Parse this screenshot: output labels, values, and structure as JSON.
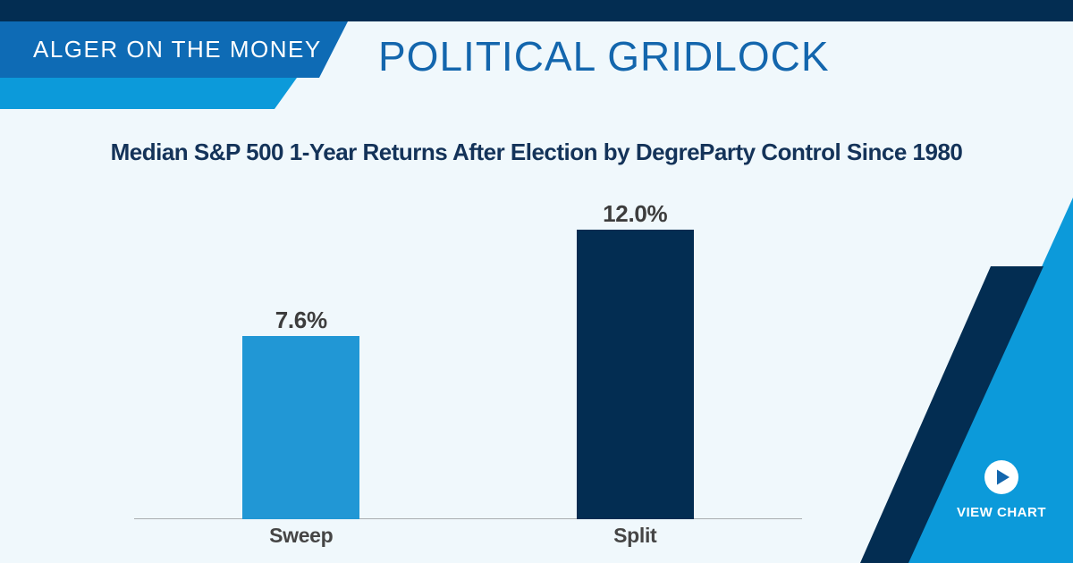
{
  "header": {
    "brand": "ALGER ON THE MONEY",
    "title": "POLITICAL GRIDLOCK"
  },
  "chart_data": {
    "type": "bar",
    "title": "Median S&P 500 1-Year Returns After Election by DegreParty Control Since 1980",
    "categories": [
      "Sweep",
      "Split"
    ],
    "values": [
      7.6,
      12.0
    ],
    "value_labels": [
      "7.6%",
      "12.0%"
    ],
    "unit": "%",
    "ylim": [
      0,
      13.4
    ],
    "grid": false,
    "legend": "none",
    "bar_colors": [
      "#2197d5",
      "#032d52"
    ]
  },
  "cta": {
    "label": "VIEW CHART",
    "icon": "play-icon"
  },
  "colors": {
    "navy": "#032d52",
    "brand_blue": "#0e6bb5",
    "accent_light_blue": "#0c9ada",
    "bar_light_blue": "#2197d5",
    "header_title_blue": "#1366ad",
    "chart_title_navy": "#143359",
    "label_gray": "#3d3d3d",
    "background": "#f0f8fc"
  }
}
